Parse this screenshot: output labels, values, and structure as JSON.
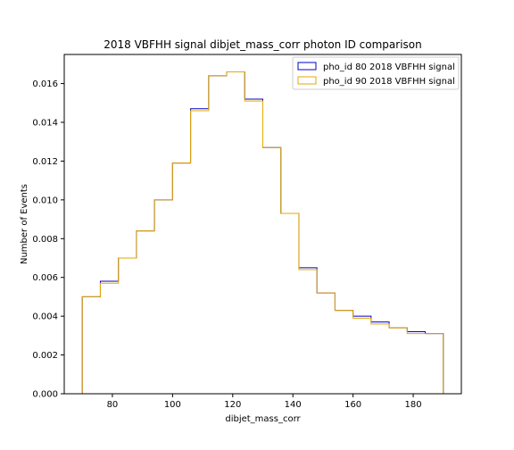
{
  "chart_data": {
    "type": "histogram-step",
    "title": "2018 VBFHH signal dibjet_mass_corr photon ID comparison",
    "xlabel": "dibjet_mass_corr",
    "ylabel": "Number of Events",
    "xlim": [
      64,
      196
    ],
    "ylim": [
      0,
      0.0175
    ],
    "xticks": [
      80,
      100,
      120,
      140,
      160,
      180
    ],
    "yticks": [
      "0.000",
      "0.002",
      "0.004",
      "0.006",
      "0.008",
      "0.010",
      "0.012",
      "0.014",
      "0.016"
    ],
    "yticks_values": [
      0,
      0.002,
      0.004,
      0.006,
      0.008,
      0.01,
      0.012,
      0.014,
      0.016
    ],
    "bin_edges": [
      70,
      76,
      82,
      88,
      94,
      100,
      106,
      112,
      118,
      124,
      130,
      136,
      142,
      148,
      154,
      160,
      166,
      172,
      178,
      184,
      190
    ],
    "legend_position": "top-right",
    "series": [
      {
        "name": "pho_id 80 2018 VBFHH signal",
        "color": "#0000cc",
        "values": [
          0.005,
          0.0058,
          0.007,
          0.0084,
          0.01,
          0.0119,
          0.0147,
          0.0164,
          0.0166,
          0.0152,
          0.0127,
          0.0093,
          0.0065,
          0.0052,
          0.0043,
          0.004,
          0.0037,
          0.0034,
          0.0032,
          0.0031
        ]
      },
      {
        "name": "pho_id 90 2018 VBFHH signal",
        "color": "#e6a800",
        "values": [
          0.005,
          0.0057,
          0.007,
          0.0084,
          0.01,
          0.0119,
          0.0146,
          0.0164,
          0.0166,
          0.0151,
          0.0127,
          0.0093,
          0.0064,
          0.0052,
          0.0043,
          0.0039,
          0.0036,
          0.0034,
          0.0031,
          0.0031
        ]
      }
    ]
  }
}
